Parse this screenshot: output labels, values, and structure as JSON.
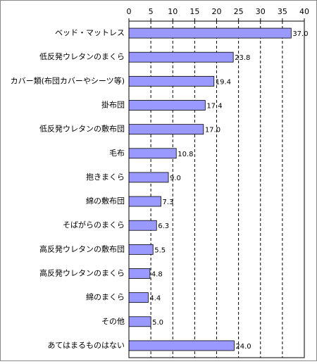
{
  "chart_data": {
    "type": "hbar",
    "categories": [
      "ベッド・マットレス",
      "低反発ウレタンのまくら",
      "カバー類(布団カバーやシーツ等)",
      "掛布団",
      "低反発ウレタンの敷布団",
      "毛布",
      "抱きまくら",
      "綿の敷布団",
      "そばがらのまくら",
      "高反発ウレタンの敷布団",
      "高反発ウレタンのまくら",
      "綿のまくら",
      "その他",
      "あてはまるものはない"
    ],
    "values": [
      37.0,
      23.8,
      19.4,
      17.4,
      17.0,
      10.8,
      9.0,
      7.3,
      6.3,
      5.5,
      4.8,
      4.4,
      5.0,
      24.0
    ],
    "value_labels": [
      "37.0",
      "23.8",
      "19.4",
      "17.4",
      "17.0",
      "10.8",
      "9.0",
      "7.3",
      "6.3",
      "5.5",
      "4.8",
      "4.4",
      "5.0",
      "24.0"
    ],
    "color": "#9999ff",
    "xlim": [
      0,
      40
    ],
    "xticks": [
      0,
      5,
      10,
      15,
      20,
      25,
      30,
      35,
      40
    ],
    "grid": true
  }
}
